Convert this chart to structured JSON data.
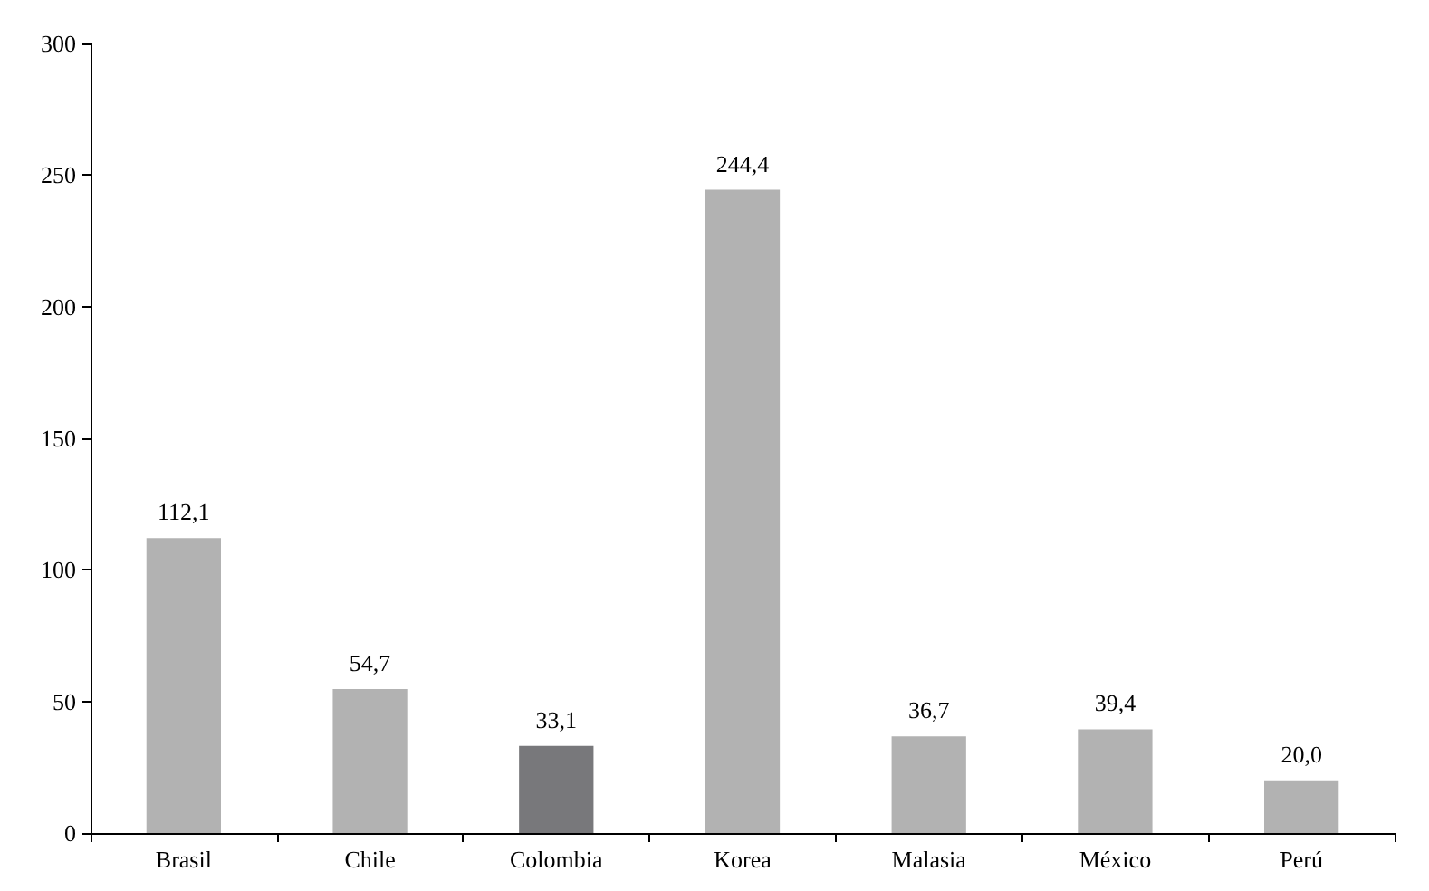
{
  "chart_data": {
    "type": "bar",
    "categories": [
      "Brasil",
      "Chile",
      "Colombia",
      "Korea",
      "Malasia",
      "México",
      "Perú"
    ],
    "values": [
      112.1,
      54.7,
      33.1,
      244.4,
      36.7,
      39.4,
      20.0
    ],
    "colors": [
      "#b2b2b2",
      "#b2b2b2",
      "#78787b",
      "#b2b2b2",
      "#b2b2b2",
      "#b2b2b2",
      "#b2b2b2"
    ],
    "value_labels": [
      "112,1",
      "54,7",
      "33,1",
      "244,4",
      "36,7",
      "39,4",
      "20,0"
    ],
    "ylim": [
      0,
      300
    ],
    "yticks": [
      0,
      50,
      100,
      150,
      200,
      250,
      300
    ],
    "grid": false
  }
}
